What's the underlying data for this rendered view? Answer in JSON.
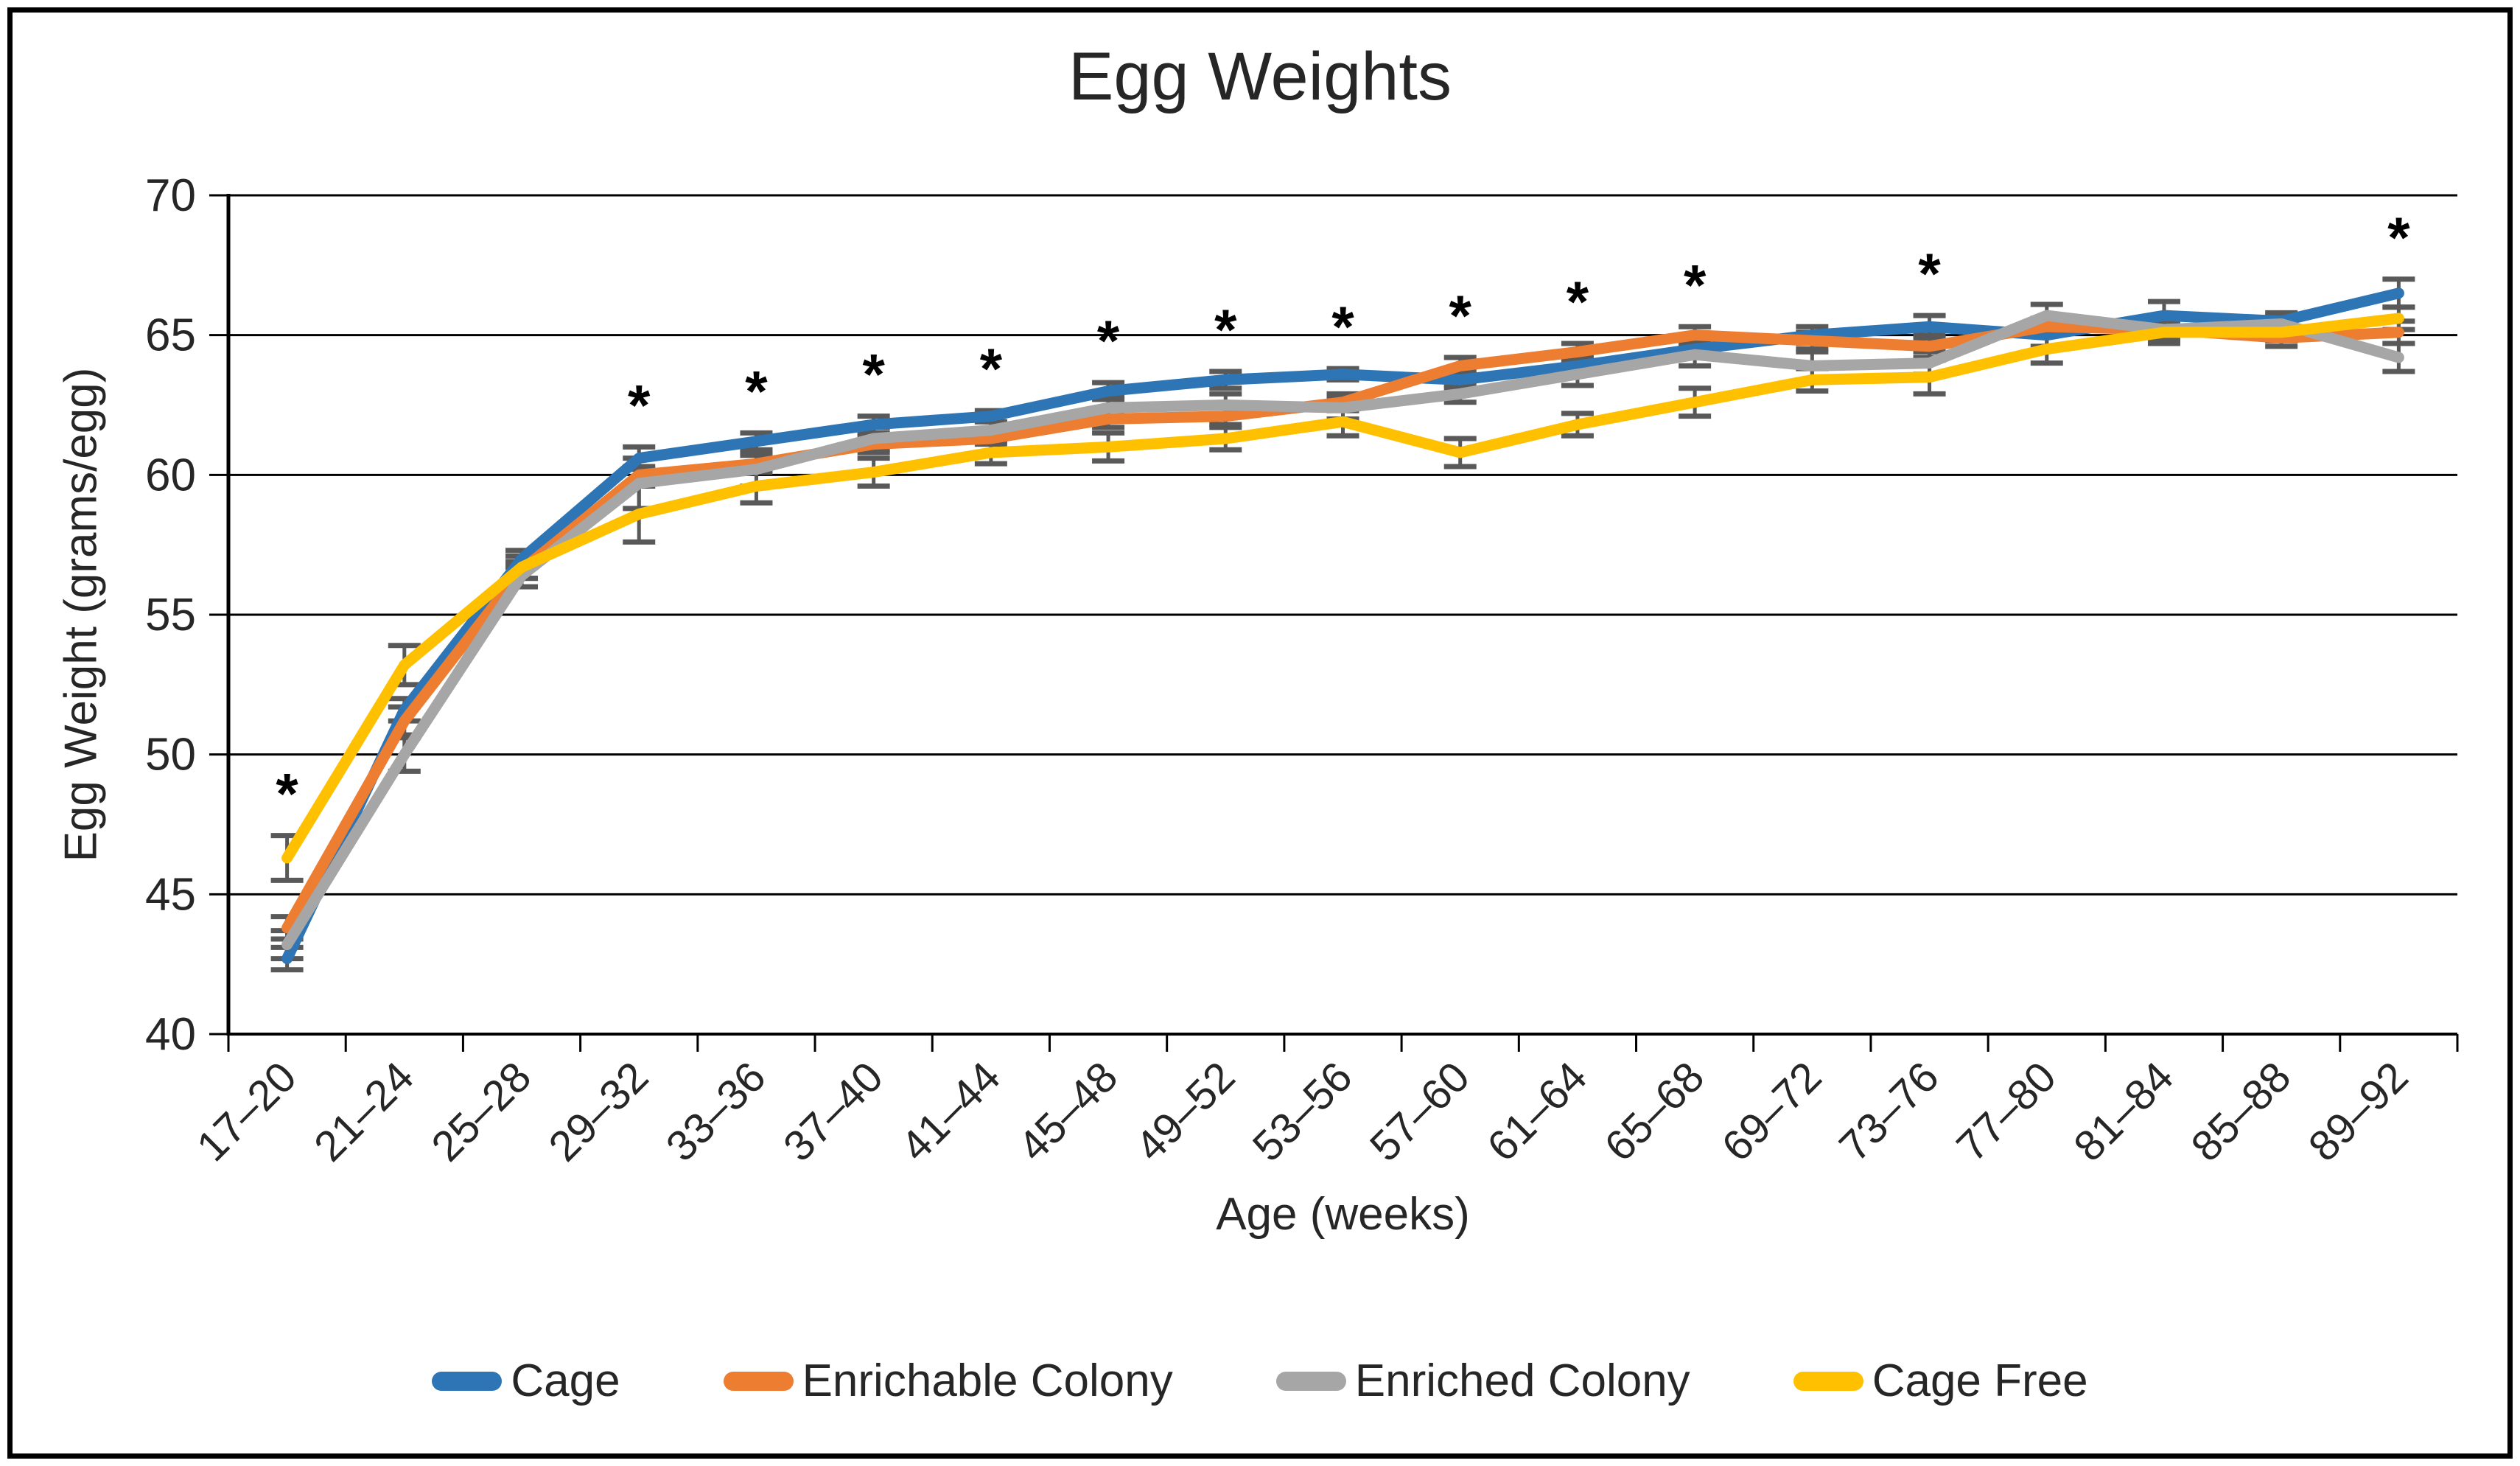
{
  "figure": {
    "background": "#ffffff",
    "border_color": "#000000",
    "text_color": "#262626"
  },
  "chart_data": {
    "type": "line",
    "title": "Egg Weights",
    "xlabel": "Age (weeks)",
    "ylabel": "Egg Weight (grams/egg)",
    "ylim": [
      40,
      70
    ],
    "yticks": [
      40,
      45,
      50,
      55,
      60,
      65,
      70
    ],
    "grid": "horizontal",
    "legend_position": "bottom",
    "error_bar_color": "#595959",
    "significance_marker": "*",
    "significant_categories": [
      "17–20",
      "29–32",
      "33–36",
      "37–40",
      "41–44",
      "45–48",
      "49–52",
      "53–56",
      "57–60",
      "61–64",
      "65–68",
      "73–76",
      "89–92"
    ],
    "categories": [
      "17–20",
      "21–24",
      "25–28",
      "29–32",
      "33–36",
      "37–40",
      "41–44",
      "45–48",
      "49–52",
      "53–56",
      "57–60",
      "61–64",
      "65–68",
      "69–72",
      "73–76",
      "77–80",
      "81–84",
      "85–88",
      "89–92"
    ],
    "series": [
      {
        "name": "Cage",
        "color": "#2E75B6",
        "values": [
          42.7,
          51.6,
          57.0,
          60.6,
          61.2,
          61.8,
          62.1,
          63.0,
          63.4,
          63.6,
          63.4,
          63.9,
          64.5,
          65.0,
          65.3,
          65.0,
          65.7,
          65.5,
          66.5
        ],
        "errors": [
          0.4,
          0.4,
          0.3,
          0.4,
          0.3,
          0.3,
          0.2,
          0.3,
          0.3,
          0.2,
          0.3,
          0.3,
          0.3,
          0.3,
          0.4,
          0.4,
          0.5,
          0.3,
          0.5
        ]
      },
      {
        "name": "Enrichable Colony",
        "color": "#ED7D31",
        "values": [
          43.8,
          51.2,
          56.6,
          60.0,
          60.4,
          61.1,
          61.3,
          62.0,
          62.1,
          62.6,
          63.9,
          64.4,
          65.0,
          64.8,
          64.6,
          65.3,
          65.2,
          64.9,
          65.1
        ],
        "errors": [
          0.4,
          0.5,
          0.3,
          0.3,
          0.3,
          0.3,
          0.2,
          0.3,
          0.3,
          0.3,
          0.3,
          0.3,
          0.3,
          0.3,
          0.4,
          0.3,
          0.3,
          0.3,
          0.4
        ]
      },
      {
        "name": "Enriched Colony",
        "color": "#A6A6A6",
        "values": [
          43.2,
          50.0,
          56.4,
          59.7,
          60.2,
          61.3,
          61.6,
          62.4,
          62.5,
          62.4,
          62.9,
          63.6,
          64.3,
          63.9,
          64.0,
          65.7,
          65.2,
          65.4,
          64.2
        ],
        "errors": [
          0.5,
          0.6,
          0.4,
          0.9,
          0.6,
          0.4,
          0.3,
          0.4,
          0.4,
          0.4,
          0.3,
          0.4,
          0.4,
          0.5,
          0.4,
          0.4,
          0.4,
          0.3,
          0.5
        ]
      },
      {
        "name": "Cage Free",
        "color": "#FFC000",
        "values": [
          46.3,
          53.2,
          56.7,
          58.6,
          59.6,
          60.1,
          60.8,
          61.0,
          61.3,
          61.9,
          60.8,
          61.8,
          62.6,
          63.4,
          63.5,
          64.5,
          65.1,
          65.1,
          65.6
        ],
        "errors": [
          0.8,
          0.7,
          0.4,
          1.0,
          0.6,
          0.5,
          0.4,
          0.5,
          0.4,
          0.5,
          0.5,
          0.4,
          0.5,
          0.4,
          0.6,
          0.5,
          0.4,
          0.3,
          0.4
        ]
      }
    ]
  }
}
